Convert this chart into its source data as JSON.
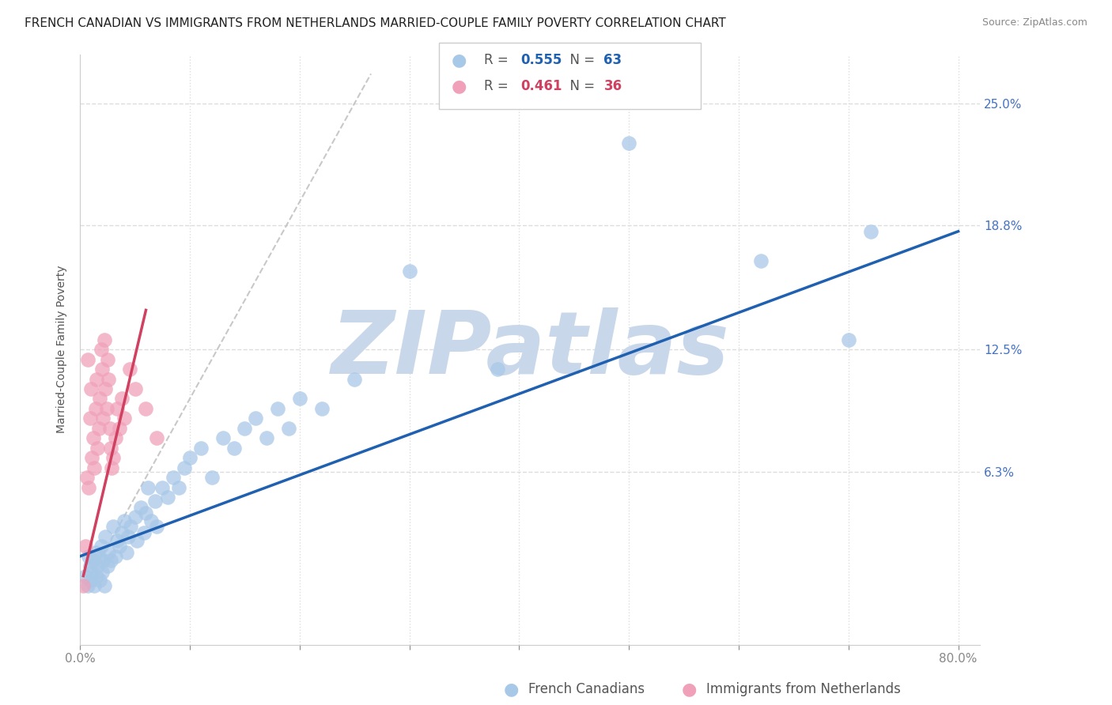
{
  "title": "FRENCH CANADIAN VS IMMIGRANTS FROM NETHERLANDS MARRIED-COUPLE FAMILY POVERTY CORRELATION CHART",
  "source": "Source: ZipAtlas.com",
  "ylabel": "Married-Couple Family Poverty",
  "r_blue": 0.555,
  "n_blue": 63,
  "r_pink": 0.461,
  "n_pink": 36,
  "blue_color": "#a8c8e8",
  "blue_line_color": "#2060b0",
  "pink_color": "#f0a0b8",
  "pink_line_color": "#d04060",
  "ref_line_color": "#bbbbbb",
  "watermark": "ZIPatlas",
  "watermark_color": "#c8d8ea",
  "background_color": "#ffffff",
  "grid_color": "#dddddd",
  "ytick_color": "#4472c4",
  "xtick_color": "#888888",
  "title_color": "#222222",
  "source_color": "#888888",
  "ylabel_color": "#555555",
  "xlim": [
    0.0,
    0.82
  ],
  "ylim": [
    -0.025,
    0.275
  ],
  "ytick_positions": [
    0.0,
    0.063,
    0.125,
    0.188,
    0.25
  ],
  "ytick_labels": [
    "",
    "6.3%",
    "12.5%",
    "18.8%",
    "25.0%"
  ],
  "xtick_positions": [
    0.0,
    0.1,
    0.2,
    0.3,
    0.4,
    0.5,
    0.6,
    0.7,
    0.8
  ],
  "xtick_labels": [
    "0.0%",
    "",
    "",
    "",
    "",
    "",
    "",
    "",
    "80.0%"
  ],
  "legend_labels": [
    "French Canadians",
    "Immigrants from Netherlands"
  ],
  "title_fontsize": 11,
  "axis_label_fontsize": 10,
  "tick_fontsize": 11,
  "legend_fontsize": 12,
  "source_fontsize": 9,
  "scatter_size": 180,
  "blue_scatter": [
    [
      0.005,
      0.01
    ],
    [
      0.007,
      0.005
    ],
    [
      0.008,
      0.02
    ],
    [
      0.009,
      0.015
    ],
    [
      0.01,
      0.008
    ],
    [
      0.011,
      0.012
    ],
    [
      0.012,
      0.018
    ],
    [
      0.013,
      0.005
    ],
    [
      0.014,
      0.022
    ],
    [
      0.015,
      0.01
    ],
    [
      0.016,
      0.015
    ],
    [
      0.017,
      0.02
    ],
    [
      0.018,
      0.008
    ],
    [
      0.019,
      0.025
    ],
    [
      0.02,
      0.012
    ],
    [
      0.021,
      0.018
    ],
    [
      0.022,
      0.005
    ],
    [
      0.023,
      0.03
    ],
    [
      0.025,
      0.015
    ],
    [
      0.026,
      0.022
    ],
    [
      0.028,
      0.018
    ],
    [
      0.03,
      0.035
    ],
    [
      0.032,
      0.02
    ],
    [
      0.034,
      0.028
    ],
    [
      0.036,
      0.025
    ],
    [
      0.038,
      0.032
    ],
    [
      0.04,
      0.038
    ],
    [
      0.042,
      0.022
    ],
    [
      0.044,
      0.03
    ],
    [
      0.046,
      0.035
    ],
    [
      0.05,
      0.04
    ],
    [
      0.052,
      0.028
    ],
    [
      0.055,
      0.045
    ],
    [
      0.058,
      0.032
    ],
    [
      0.06,
      0.042
    ],
    [
      0.062,
      0.055
    ],
    [
      0.065,
      0.038
    ],
    [
      0.068,
      0.048
    ],
    [
      0.07,
      0.035
    ],
    [
      0.075,
      0.055
    ],
    [
      0.08,
      0.05
    ],
    [
      0.085,
      0.06
    ],
    [
      0.09,
      0.055
    ],
    [
      0.095,
      0.065
    ],
    [
      0.1,
      0.07
    ],
    [
      0.11,
      0.075
    ],
    [
      0.12,
      0.06
    ],
    [
      0.13,
      0.08
    ],
    [
      0.14,
      0.075
    ],
    [
      0.15,
      0.085
    ],
    [
      0.16,
      0.09
    ],
    [
      0.17,
      0.08
    ],
    [
      0.18,
      0.095
    ],
    [
      0.19,
      0.085
    ],
    [
      0.2,
      0.1
    ],
    [
      0.22,
      0.095
    ],
    [
      0.25,
      0.11
    ],
    [
      0.3,
      0.165
    ],
    [
      0.38,
      0.115
    ],
    [
      0.5,
      0.23
    ],
    [
      0.62,
      0.17
    ],
    [
      0.7,
      0.13
    ],
    [
      0.72,
      0.185
    ]
  ],
  "pink_scatter": [
    [
      0.003,
      0.005
    ],
    [
      0.005,
      0.025
    ],
    [
      0.006,
      0.06
    ],
    [
      0.007,
      0.12
    ],
    [
      0.008,
      0.055
    ],
    [
      0.009,
      0.09
    ],
    [
      0.01,
      0.105
    ],
    [
      0.011,
      0.07
    ],
    [
      0.012,
      0.08
    ],
    [
      0.013,
      0.065
    ],
    [
      0.014,
      0.095
    ],
    [
      0.015,
      0.11
    ],
    [
      0.016,
      0.075
    ],
    [
      0.017,
      0.085
    ],
    [
      0.018,
      0.1
    ],
    [
      0.019,
      0.125
    ],
    [
      0.02,
      0.115
    ],
    [
      0.021,
      0.09
    ],
    [
      0.022,
      0.13
    ],
    [
      0.023,
      0.105
    ],
    [
      0.024,
      0.095
    ],
    [
      0.025,
      0.12
    ],
    [
      0.026,
      0.11
    ],
    [
      0.027,
      0.085
    ],
    [
      0.028,
      0.075
    ],
    [
      0.029,
      0.065
    ],
    [
      0.03,
      0.07
    ],
    [
      0.032,
      0.08
    ],
    [
      0.034,
      0.095
    ],
    [
      0.036,
      0.085
    ],
    [
      0.038,
      0.1
    ],
    [
      0.04,
      0.09
    ],
    [
      0.045,
      0.115
    ],
    [
      0.05,
      0.105
    ],
    [
      0.06,
      0.095
    ],
    [
      0.07,
      0.08
    ]
  ],
  "blue_line_x": [
    0.0,
    0.8
  ],
  "blue_line_y": [
    0.02,
    0.185
  ],
  "pink_line_x": [
    0.003,
    0.06
  ],
  "pink_line_y": [
    0.01,
    0.145
  ],
  "ref_line_x": [
    0.005,
    0.265
  ],
  "ref_line_y": [
    0.005,
    0.265
  ]
}
